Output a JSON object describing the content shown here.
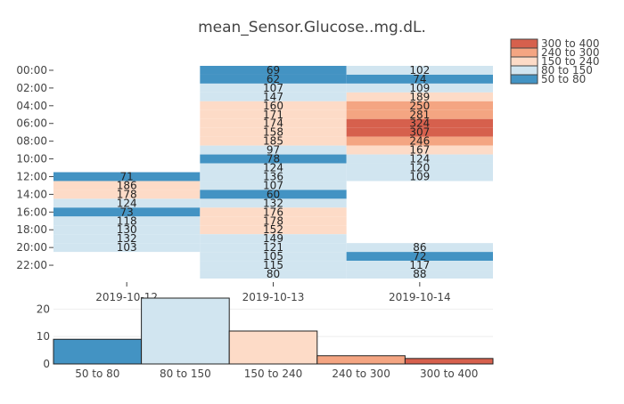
{
  "chart_data": [
    {
      "type": "heatmap",
      "title": "mean_Sensor.Glucose..mg.dL.",
      "x": [
        "2019-10-12",
        "2019-10-13",
        "2019-10-14"
      ],
      "y": [
        "00:00",
        "01:00",
        "02:00",
        "03:00",
        "04:00",
        "05:00",
        "06:00",
        "07:00",
        "08:00",
        "09:00",
        "10:00",
        "11:00",
        "12:00",
        "13:00",
        "14:00",
        "15:00",
        "16:00",
        "17:00",
        "18:00",
        "19:00",
        "20:00",
        "21:00",
        "22:00",
        "23:00"
      ],
      "y_tick_labels": [
        "00:00",
        "02:00",
        "04:00",
        "06:00",
        "08:00",
        "10:00",
        "12:00",
        "14:00",
        "16:00",
        "18:00",
        "20:00",
        "22:00"
      ],
      "z": [
        [
          null,
          69,
          102
        ],
        [
          null,
          62,
          74
        ],
        [
          null,
          107,
          109
        ],
        [
          null,
          147,
          189
        ],
        [
          null,
          160,
          250
        ],
        [
          null,
          171,
          281
        ],
        [
          null,
          174,
          324
        ],
        [
          null,
          158,
          307
        ],
        [
          null,
          185,
          246
        ],
        [
          null,
          97,
          167
        ],
        [
          null,
          78,
          124
        ],
        [
          null,
          124,
          120
        ],
        [
          71,
          136,
          109
        ],
        [
          186,
          107,
          null
        ],
        [
          178,
          60,
          null
        ],
        [
          124,
          132,
          null
        ],
        [
          73,
          176,
          null
        ],
        [
          118,
          178,
          null
        ],
        [
          130,
          152,
          null
        ],
        [
          132,
          149,
          null
        ],
        [
          103,
          121,
          86
        ],
        [
          null,
          105,
          72
        ],
        [
          null,
          115,
          117
        ],
        [
          null,
          80,
          88
        ]
      ],
      "legend": [
        {
          "label": "300 to 400",
          "color": "#d6604d",
          "min": 300,
          "max": 400
        },
        {
          "label": "240 to 300",
          "color": "#f4a582",
          "min": 240,
          "max": 300
        },
        {
          "label": "150 to 240",
          "color": "#fddbc7",
          "min": 150,
          "max": 240
        },
        {
          "label": "80 to 150",
          "color": "#d1e5f0",
          "min": 80,
          "max": 150
        },
        {
          "label": "50 to 80",
          "color": "#4393c3",
          "min": 50,
          "max": 80
        }
      ],
      "legend_position": "top-right"
    },
    {
      "type": "bar",
      "categories": [
        "50 to 80",
        "80 to 150",
        "150 to 240",
        "240 to 300",
        "300 to 400"
      ],
      "values": [
        9,
        24,
        12,
        3,
        2
      ],
      "colors": [
        "#4393c3",
        "#d1e5f0",
        "#fddbc7",
        "#f4a582",
        "#d6604d"
      ],
      "ylim": [
        0,
        24
      ],
      "y_ticks": [
        0,
        10,
        20
      ],
      "grid": true
    }
  ]
}
